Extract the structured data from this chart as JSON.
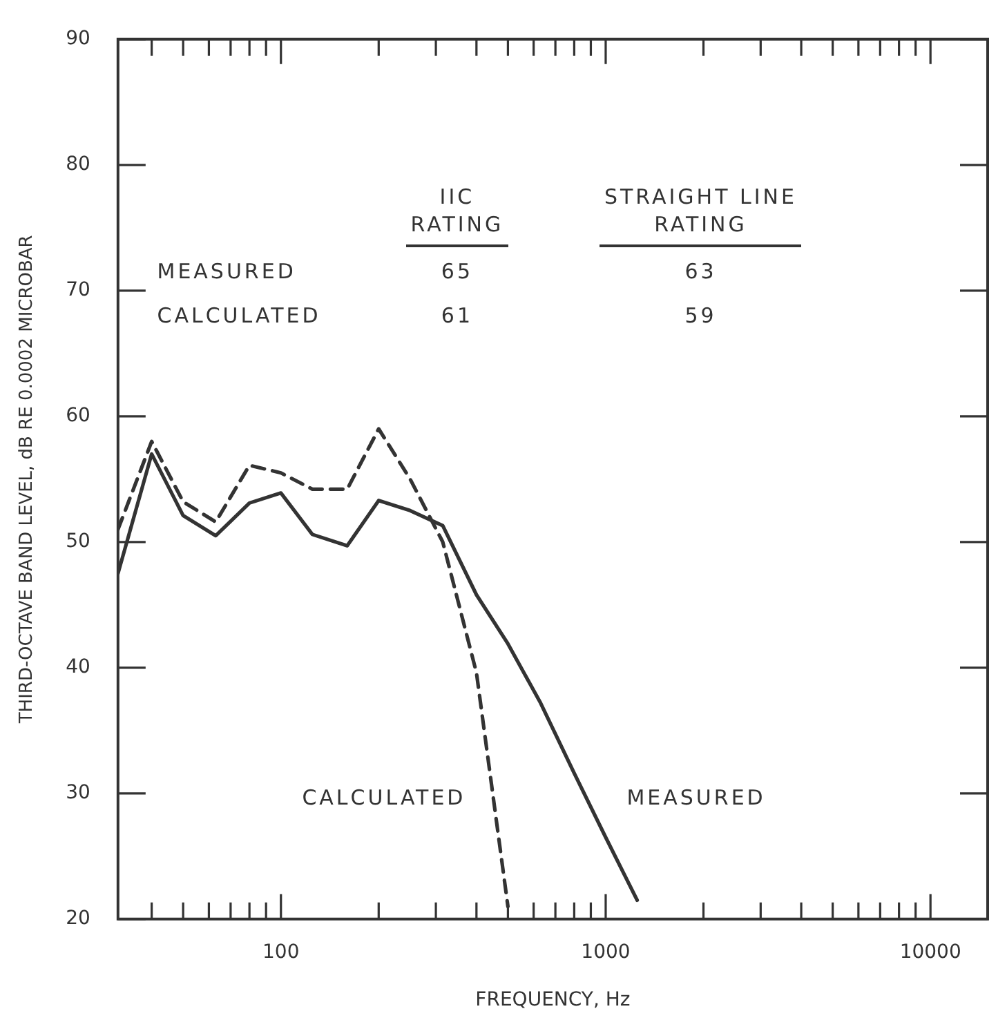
{
  "chart_data": {
    "type": "line",
    "xlabel": "FREQUENCY, Hz",
    "ylabel": "THIRD-OCTAVE BAND LEVEL, dB RE 0.0002 MICROBAR",
    "x": [
      31.5,
      40,
      50,
      63,
      80,
      100,
      125,
      160,
      200,
      250,
      315,
      400,
      500,
      630,
      800,
      1000,
      1250
    ],
    "series": [
      {
        "name": "CALCULATED",
        "color": "#333333",
        "line_style": "dashed",
        "values": [
          51,
          58,
          53.2,
          51.6,
          56.1,
          55.5,
          54.2,
          54.2,
          59,
          55,
          50,
          39.6,
          21,
          null,
          null,
          null,
          null
        ]
      },
      {
        "name": "MEASURED",
        "color": "#333333",
        "line_style": "solid",
        "values": [
          47.5,
          57,
          52.1,
          50.5,
          53.1,
          53.9,
          50.6,
          49.7,
          53.3,
          52.5,
          51.3,
          45.8,
          41.9,
          37.2,
          31.6,
          26.5,
          21.5
        ]
      }
    ],
    "annotations": [
      "IIC RATING",
      "STRAIGHT LINE RATING",
      "MEASURED",
      "65",
      "63",
      "CALCULATED",
      "61",
      "59"
    ],
    "log": "x",
    "marker": "none",
    "grid": false,
    "legend": false,
    "xlim": [
      31.5,
      15000
    ],
    "xticks": [
      {
        "value": 40,
        "label": null
      },
      {
        "value": 50,
        "label": null
      },
      {
        "value": 60,
        "label": null
      },
      {
        "value": 70,
        "label": null
      },
      {
        "value": 80,
        "label": null
      },
      {
        "value": 90,
        "label": null
      },
      100,
      {
        "value": 200,
        "label": null
      },
      {
        "value": 300,
        "label": null
      },
      {
        "value": 400,
        "label": null
      },
      {
        "value": 500,
        "label": null
      },
      {
        "value": 600,
        "label": null
      },
      {
        "value": 700,
        "label": null
      },
      {
        "value": 800,
        "label": null
      },
      {
        "value": 900,
        "label": null
      },
      1000,
      {
        "value": 2000,
        "label": null
      },
      {
        "value": 3000,
        "label": null
      },
      {
        "value": 4000,
        "label": null
      },
      {
        "value": 5000,
        "label": null
      },
      {
        "value": 6000,
        "label": null
      },
      {
        "value": 7000,
        "label": null
      },
      {
        "value": 8000,
        "label": null
      },
      {
        "value": 9000,
        "label": null
      },
      10000
    ],
    "ylim": [
      20,
      90
    ],
    "yticks": [
      20,
      30,
      40,
      50,
      60,
      70,
      80,
      90
    ]
  }
}
